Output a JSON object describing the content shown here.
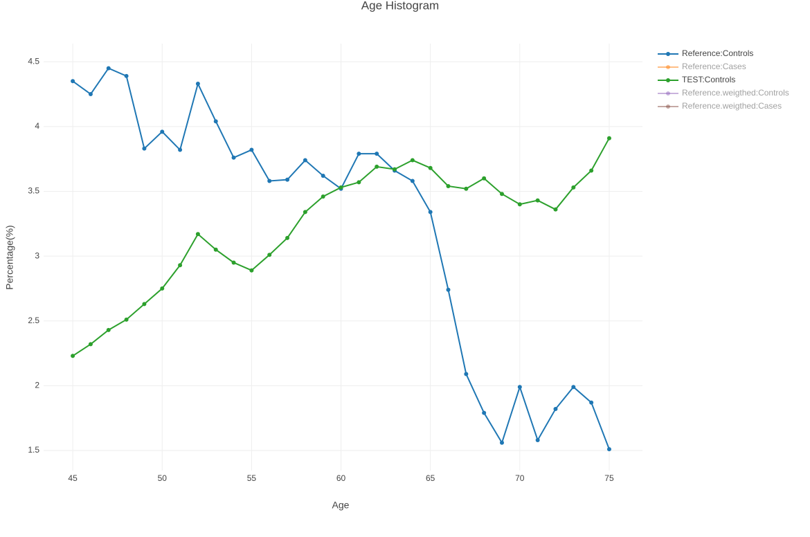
{
  "chart_data": {
    "type": "line",
    "title": "Age Histogram",
    "x_label": "Age",
    "y_label": "Percentage(%)",
    "x": [
      45,
      46,
      47,
      48,
      49,
      50,
      51,
      52,
      53,
      54,
      55,
      56,
      57,
      58,
      59,
      60,
      61,
      62,
      63,
      64,
      65,
      66,
      67,
      68,
      69,
      70,
      71,
      72,
      73,
      74,
      75
    ],
    "series": [
      {
        "name": "Reference:Controls",
        "color": "#1f77b4",
        "values": [
          4.35,
          4.25,
          4.45,
          4.39,
          3.83,
          3.96,
          3.82,
          4.33,
          4.04,
          3.76,
          3.82,
          3.58,
          3.59,
          3.74,
          3.62,
          3.52,
          3.79,
          3.79,
          3.66,
          3.58,
          3.34,
          2.74,
          2.09,
          1.79,
          1.56,
          1.99,
          1.58,
          1.82,
          1.99,
          1.87,
          1.51
        ]
      },
      {
        "name": "Reference:Cases",
        "color": "#ff7f0e",
        "hidden": true
      },
      {
        "name": "TEST:Controls",
        "color": "#2ca02c",
        "values": [
          2.23,
          2.32,
          2.43,
          2.51,
          2.63,
          2.75,
          2.93,
          3.17,
          3.05,
          2.95,
          2.89,
          3.01,
          3.14,
          3.34,
          3.46,
          3.53,
          3.57,
          3.69,
          3.67,
          3.74,
          3.68,
          3.54,
          3.52,
          3.6,
          3.48,
          3.4,
          3.43,
          3.36,
          3.53,
          3.66,
          3.91
        ]
      },
      {
        "name": "Reference.weigthed:Controls",
        "color": "#9467bd",
        "hidden": true
      },
      {
        "name": "Reference.weigthed:Cases",
        "color": "#8c564b",
        "hidden": true
      }
    ],
    "xlim": [
      43.37,
      76.86
    ],
    "ylim": [
      1.345,
      4.64
    ],
    "xticks": [
      45,
      50,
      55,
      60,
      65,
      70,
      75
    ],
    "yticks": [
      1.5,
      2,
      2.5,
      3,
      3.5,
      4,
      4.5
    ],
    "grid": true,
    "legend": "right"
  }
}
